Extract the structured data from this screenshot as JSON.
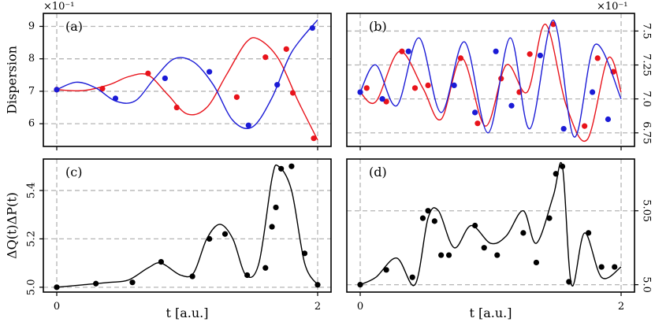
{
  "colors": {
    "red": "#e8131b",
    "blue": "#1b1bd6",
    "black": "#000000",
    "grid": "#b5b5b5"
  },
  "chart_data": [
    {
      "panel": "a",
      "type": "line",
      "panel_label": "(a)",
      "ylabel": "Dispersion",
      "multiplier": "×10⁻¹",
      "xlim": [
        0,
        2
      ],
      "ylim": [
        5.3,
        9.4
      ],
      "xticks": [
        0,
        2
      ],
      "xtick_labels": [],
      "yticks": [
        6,
        7,
        8,
        9
      ],
      "ytick_labels": [
        "6",
        "7",
        "8",
        "9"
      ],
      "grid": true,
      "series": [
        {
          "color": "red",
          "x": [
            0,
            0.2,
            0.4,
            0.55,
            0.7,
            0.85,
            1.0,
            1.15,
            1.3,
            1.45,
            1.55,
            1.7,
            1.85,
            2.0
          ],
          "y": [
            7.05,
            7.02,
            7.2,
            7.45,
            7.5,
            6.9,
            6.3,
            6.5,
            7.5,
            8.5,
            8.6,
            8.0,
            6.7,
            5.5
          ],
          "markers_x": [
            0,
            0.35,
            0.7,
            0.92,
            1.38,
            1.6,
            1.76,
            1.81,
            1.97
          ],
          "markers_y": [
            7.05,
            7.08,
            7.55,
            6.5,
            6.82,
            8.05,
            8.3,
            6.95,
            5.55
          ]
        },
        {
          "color": "blue",
          "x": [
            0,
            0.15,
            0.3,
            0.45,
            0.6,
            0.75,
            0.9,
            1.05,
            1.2,
            1.35,
            1.5,
            1.65,
            1.8,
            2.0
          ],
          "y": [
            7.05,
            7.28,
            7.1,
            6.7,
            6.7,
            7.4,
            8.0,
            7.9,
            7.2,
            6.1,
            5.9,
            6.8,
            8.2,
            9.2
          ],
          "markers_x": [
            0,
            0.45,
            0.83,
            1.17,
            1.47,
            1.69,
            1.96
          ],
          "markers_y": [
            7.05,
            6.78,
            7.4,
            7.6,
            5.95,
            7.2,
            8.95
          ]
        }
      ]
    },
    {
      "panel": "b",
      "type": "line",
      "panel_label": "(b)",
      "multiplier": "×10⁻¹",
      "xlim": [
        0,
        2
      ],
      "ylim": [
        6.65,
        7.63
      ],
      "xticks": [
        0,
        2
      ],
      "xtick_labels": [],
      "yticks": [
        6.75,
        7.0,
        7.25,
        7.5
      ],
      "ytick_labels": [
        "6.75",
        "7.0",
        "7.25",
        "7.5"
      ],
      "grid": true,
      "series": [
        {
          "color": "red",
          "x": [
            0,
            0.12,
            0.3,
            0.48,
            0.62,
            0.78,
            0.96,
            1.12,
            1.28,
            1.42,
            1.58,
            1.74,
            1.9,
            2.0
          ],
          "y": [
            7.05,
            6.98,
            7.35,
            7.08,
            6.85,
            7.3,
            6.8,
            7.25,
            7.05,
            7.55,
            6.95,
            6.7,
            7.3,
            7.05
          ],
          "markers_x": [
            0.05,
            0.2,
            0.32,
            0.42,
            0.52,
            0.77,
            0.9,
            1.08,
            1.22,
            1.3,
            1.48,
            1.72,
            1.82,
            1.94
          ],
          "markers_y": [
            7.08,
            6.98,
            7.35,
            7.08,
            7.1,
            7.3,
            6.82,
            7.15,
            7.05,
            7.33,
            7.55,
            6.8,
            7.3,
            7.2
          ]
        },
        {
          "color": "blue",
          "x": [
            0,
            0.12,
            0.28,
            0.45,
            0.62,
            0.8,
            0.98,
            1.15,
            1.3,
            1.48,
            1.64,
            1.8,
            2.0
          ],
          "y": [
            7.05,
            7.25,
            6.95,
            7.45,
            6.9,
            7.42,
            6.75,
            7.45,
            6.78,
            7.58,
            6.72,
            7.4,
            7.0
          ],
          "markers_x": [
            0,
            0.17,
            0.37,
            0.72,
            0.88,
            1.04,
            1.16,
            1.38,
            1.56,
            1.78,
            1.9
          ],
          "markers_y": [
            7.05,
            7.0,
            7.35,
            7.1,
            6.9,
            7.35,
            6.95,
            7.32,
            6.78,
            7.05,
            6.85
          ]
        }
      ]
    },
    {
      "panel": "c",
      "type": "line",
      "panel_label": "(c)",
      "ylabel": "ΔQ(t)ΔP(t)",
      "xlabel": "t [a.u.]",
      "xlim": [
        0,
        2
      ],
      "ylim": [
        4.98,
        5.53
      ],
      "xticks": [
        0,
        2
      ],
      "xtick_labels": [
        "0",
        "2"
      ],
      "yticks": [
        5.0,
        5.2,
        5.4
      ],
      "ytick_labels": [
        "5.0",
        "5.2",
        "5.4"
      ],
      "grid": true,
      "series": [
        {
          "color": "black",
          "x": [
            0,
            0.2,
            0.4,
            0.55,
            0.7,
            0.8,
            0.95,
            1.05,
            1.15,
            1.25,
            1.35,
            1.45,
            1.55,
            1.65,
            1.7,
            1.8,
            1.9,
            2.0
          ],
          "y": [
            5.0,
            5.01,
            5.02,
            5.03,
            5.08,
            5.1,
            5.05,
            5.06,
            5.2,
            5.26,
            5.2,
            5.05,
            5.1,
            5.45,
            5.5,
            5.4,
            5.1,
            5.01
          ],
          "markers_x": [
            0,
            0.3,
            0.58,
            0.8,
            1.04,
            1.17,
            1.29,
            1.46,
            1.6,
            1.65,
            1.68,
            1.72,
            1.8,
            1.9,
            2.0
          ],
          "markers_y": [
            5.0,
            5.015,
            5.02,
            5.105,
            5.045,
            5.2,
            5.22,
            5.05,
            5.08,
            5.25,
            5.33,
            5.49,
            5.5,
            5.14,
            5.01
          ]
        }
      ]
    },
    {
      "panel": "d",
      "type": "line",
      "panel_label": "(d)",
      "xlabel": "t [a.u.]",
      "xlim": [
        0,
        2
      ],
      "ylim": [
        4.995,
        5.085
      ],
      "xticks": [
        0,
        2
      ],
      "xtick_labels": [
        "0",
        "2"
      ],
      "yticks": [
        5.0,
        5.05
      ],
      "ytick_labels": [
        "5.0",
        "5.05"
      ],
      "grid": true,
      "series": [
        {
          "color": "black",
          "x": [
            0,
            0.12,
            0.28,
            0.42,
            0.52,
            0.6,
            0.72,
            0.85,
            1.0,
            1.12,
            1.25,
            1.35,
            1.48,
            1.55,
            1.62,
            1.72,
            1.85,
            2.0
          ],
          "y": [
            5.0,
            5.005,
            5.018,
            5.0,
            5.045,
            5.05,
            5.025,
            5.04,
            5.028,
            5.033,
            5.05,
            5.028,
            5.06,
            5.08,
            5.0,
            5.035,
            5.005,
            5.012
          ],
          "markers_x": [
            0,
            0.2,
            0.4,
            0.48,
            0.52,
            0.57,
            0.62,
            0.68,
            0.88,
            0.95,
            1.05,
            1.25,
            1.35,
            1.45,
            1.5,
            1.55,
            1.6,
            1.75,
            1.85,
            1.95
          ],
          "markers_y": [
            5.0,
            5.01,
            5.005,
            5.045,
            5.05,
            5.043,
            5.02,
            5.02,
            5.04,
            5.025,
            5.02,
            5.035,
            5.015,
            5.045,
            5.075,
            5.08,
            5.002,
            5.035,
            5.012,
            5.012
          ]
        }
      ]
    }
  ]
}
